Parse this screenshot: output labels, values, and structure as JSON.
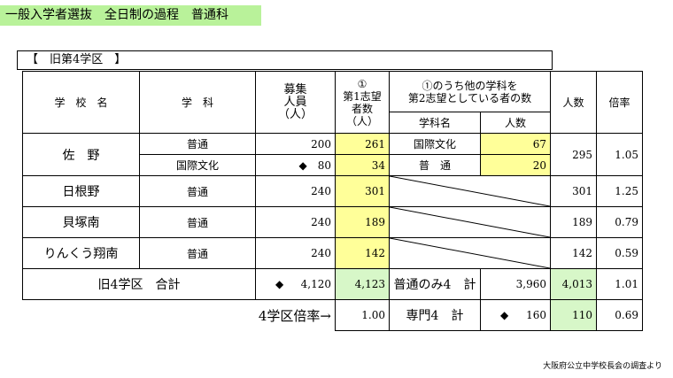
{
  "title": "一般入学者選抜　全日制の過程　普通科",
  "region": "【　旧第4学区　】",
  "headers": {
    "school": "学　校　名",
    "subject": "学　科",
    "capacity": "募集\n人員\n（人）",
    "first_choice": "①\n第1志望\n者数（人）",
    "second_group": "①のうち他の学科を\n第2志望としている者の数",
    "second_subject": "学科名",
    "second_count": "人数",
    "people": "人数",
    "ratio": "倍率"
  },
  "rows": [
    {
      "school": "佐　野",
      "subject": "普通",
      "capacity": "200",
      "first": "261",
      "sub2": "国際文化",
      "cnt2": "67",
      "people": "295",
      "ratio": "1.05"
    },
    {
      "subject": "国際文化",
      "capacity": "◆　80",
      "first": "34",
      "sub2": "普　通",
      "cnt2": "20"
    },
    {
      "school": "日根野",
      "subject": "普通",
      "capacity": "240",
      "first": "301",
      "people": "301",
      "ratio": "1.25"
    },
    {
      "school": "貝塚南",
      "subject": "普通",
      "capacity": "240",
      "first": "189",
      "people": "189",
      "ratio": "0.79"
    },
    {
      "school": "りんくう翔南",
      "subject": "普通",
      "capacity": "240",
      "first": "142",
      "people": "142",
      "ratio": "0.59"
    }
  ],
  "total": {
    "label": "旧4学区　合計",
    "diamond": "◆",
    "capacity": "4,120",
    "first": "4,123",
    "sub_label": "普通のみ4　計",
    "sub_value": "3,960",
    "people": "4,013",
    "ratio": "1.01"
  },
  "district": {
    "label": "4学区倍率→",
    "value": "1.00",
    "sub_label": "専門4　計",
    "diamond": "◆",
    "sub_value": "160",
    "people": "110",
    "ratio": "0.69"
  },
  "source": "大阪府公立中学校長会の調査より",
  "colors": {
    "banner": "#b9f29a",
    "highlight_yellow": "#ffff99",
    "highlight_green": "#d7f7c8"
  }
}
